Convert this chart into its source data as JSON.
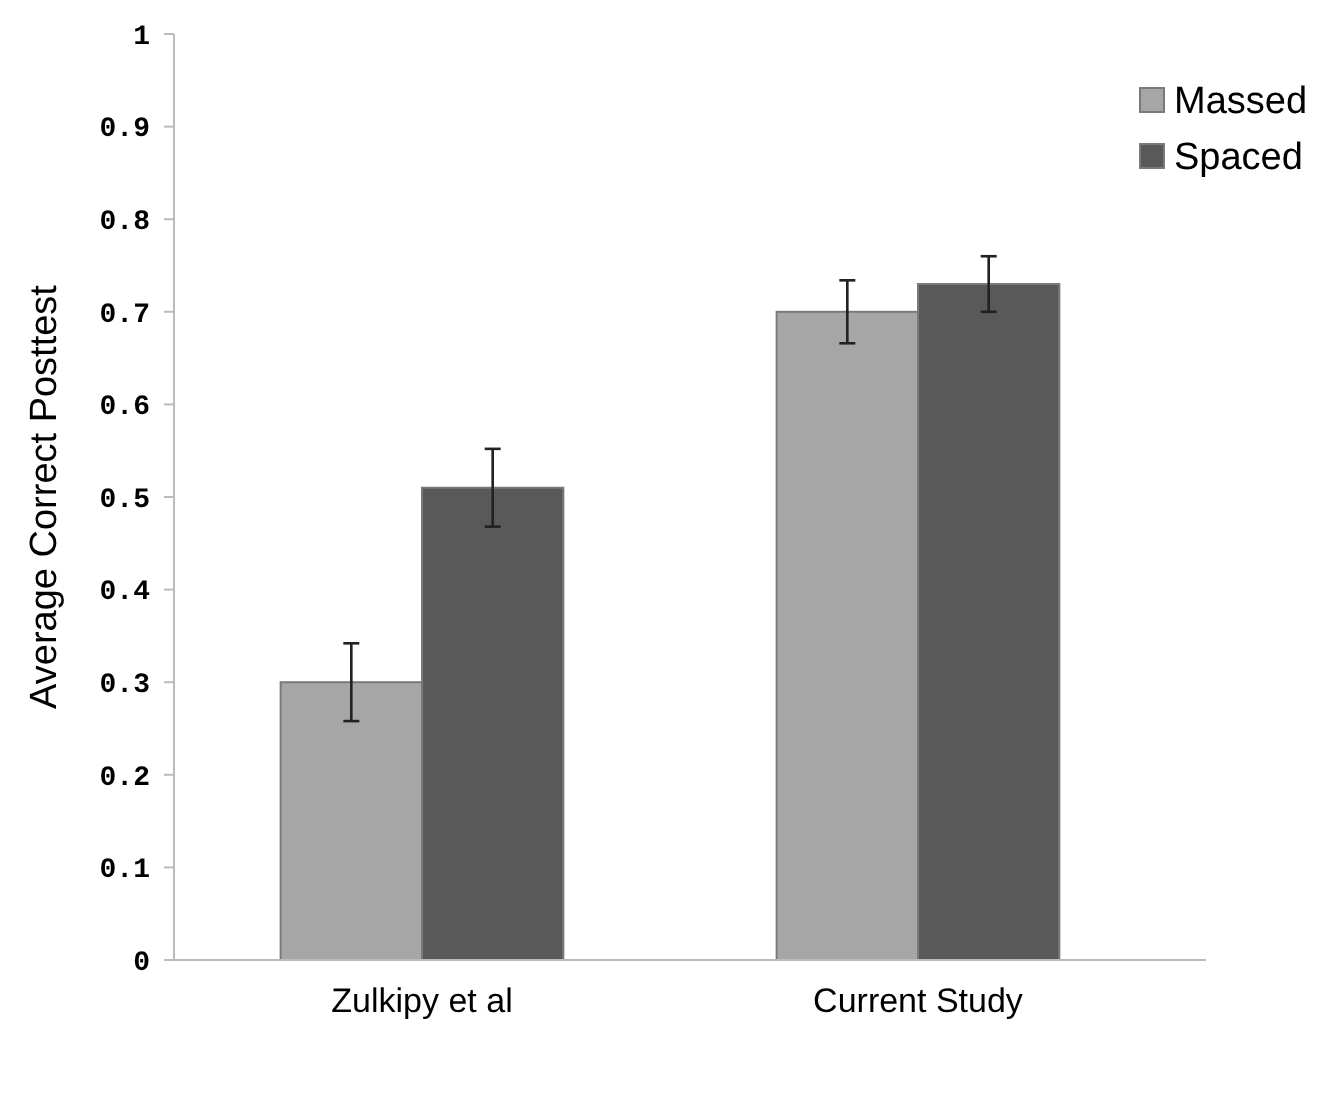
{
  "chart_data": {
    "type": "bar",
    "ylabel": "Average Correct Posttest",
    "categories": [
      "Zulkipy et al",
      "Current Study"
    ],
    "series": [
      {
        "name": "Massed",
        "color": "#a6a6a6",
        "values": [
          0.3,
          0.7
        ],
        "errors": [
          0.042,
          0.034
        ]
      },
      {
        "name": "Spaced",
        "color": "#595959",
        "values": [
          0.51,
          0.73
        ],
        "errors": [
          0.042,
          0.03
        ]
      }
    ],
    "ylim": [
      0,
      1
    ],
    "yticks": [
      0,
      0.1,
      0.2,
      0.3,
      0.4,
      0.5,
      0.6,
      0.7,
      0.8,
      0.9,
      1
    ],
    "grid": false,
    "legend": "top right"
  }
}
